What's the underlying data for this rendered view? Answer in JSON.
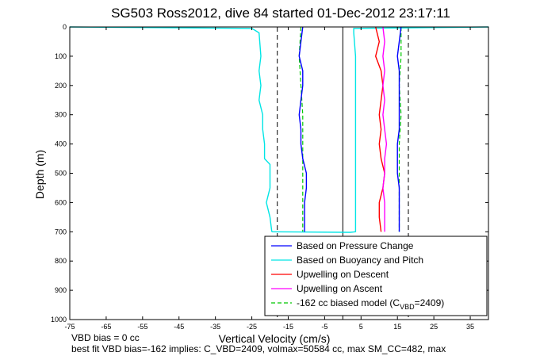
{
  "chart_data": {
    "type": "line",
    "title": "SG503 Ross2012, dive 84 started 01-Dec-2012 23:17:11",
    "xlabel": "Vertical Velocity (cm/s)",
    "ylabel": "Depth (m)",
    "xlim": [
      -75,
      40
    ],
    "ylim": [
      1000,
      0
    ],
    "y_reversed": true,
    "xticks": [
      -75,
      -65,
      -55,
      -45,
      -35,
      -25,
      -15,
      -5,
      5,
      15,
      25,
      35
    ],
    "yticks": [
      0,
      100,
      200,
      300,
      400,
      500,
      600,
      700,
      800,
      900,
      1000
    ],
    "legend_position": "bottom-right",
    "series": [
      {
        "name": "Based on Pressure Change",
        "color": "#0000ff",
        "style": "solid",
        "descent": [
          [
            -11,
            0
          ],
          [
            -11.5,
            50
          ],
          [
            -12,
            100
          ],
          [
            -11,
            150
          ],
          [
            -11,
            200
          ],
          [
            -11.5,
            250
          ],
          [
            -12,
            300
          ],
          [
            -11.5,
            350
          ],
          [
            -11.5,
            400
          ],
          [
            -11,
            450
          ],
          [
            -10,
            500
          ],
          [
            -10,
            550
          ],
          [
            -10.5,
            600
          ],
          [
            -10.5,
            650
          ],
          [
            -10.5,
            700
          ]
        ],
        "ascent": [
          [
            16,
            0
          ],
          [
            15.5,
            50
          ],
          [
            15,
            100
          ],
          [
            15.5,
            150
          ],
          [
            15.5,
            200
          ],
          [
            15.5,
            250
          ],
          [
            15.5,
            300
          ],
          [
            15.5,
            350
          ],
          [
            15,
            400
          ],
          [
            15,
            450
          ],
          [
            15,
            500
          ],
          [
            15.5,
            550
          ],
          [
            15.5,
            600
          ],
          [
            15.5,
            650
          ],
          [
            15.5,
            700
          ]
        ]
      },
      {
        "name": "Based on Buoyancy and Pitch",
        "color": "#00e5e5",
        "style": "solid",
        "descent": [
          [
            -75,
            0
          ],
          [
            -25,
            5
          ],
          [
            -23,
            20
          ],
          [
            -22.5,
            100
          ],
          [
            -23,
            150
          ],
          [
            -22.5,
            200
          ],
          [
            -23,
            250
          ],
          [
            -22,
            300
          ],
          [
            -22,
            350
          ],
          [
            -21.5,
            400
          ],
          [
            -21.5,
            450
          ],
          [
            -20,
            470
          ],
          [
            -20,
            550
          ],
          [
            -21,
            600
          ],
          [
            -20,
            650
          ],
          [
            -19.5,
            700
          ]
        ],
        "ascent": [
          [
            -19.5,
            700
          ],
          [
            2,
            702
          ],
          [
            3.5,
            700
          ],
          [
            3.5,
            650
          ],
          [
            3.5,
            500
          ],
          [
            3.5,
            300
          ],
          [
            3.5,
            100
          ],
          [
            3,
            20
          ],
          [
            3,
            5
          ],
          [
            40,
            0
          ]
        ]
      },
      {
        "name": "Upwelling on Descent",
        "color": "#ff0000",
        "style": "solid",
        "values": [
          [
            9,
            0
          ],
          [
            10,
            50
          ],
          [
            9,
            100
          ],
          [
            10.5,
            150
          ],
          [
            11,
            200
          ],
          [
            10.5,
            250
          ],
          [
            10,
            300
          ],
          [
            10.5,
            350
          ],
          [
            10,
            400
          ],
          [
            10.5,
            450
          ],
          [
            11.5,
            500
          ],
          [
            11,
            550
          ],
          [
            10,
            600
          ],
          [
            10,
            650
          ],
          [
            10.5,
            700
          ]
        ]
      },
      {
        "name": "Upwelling on Ascent",
        "color": "#ff00ff",
        "style": "solid",
        "values": [
          [
            11,
            0
          ],
          [
            11.5,
            50
          ],
          [
            11,
            100
          ],
          [
            11.5,
            150
          ],
          [
            11,
            200
          ],
          [
            11.5,
            250
          ],
          [
            11,
            300
          ],
          [
            11.5,
            350
          ],
          [
            12,
            400
          ],
          [
            11.5,
            450
          ],
          [
            11.5,
            500
          ],
          [
            11,
            550
          ],
          [
            11.5,
            600
          ],
          [
            11.5,
            650
          ],
          [
            11.5,
            700
          ]
        ]
      },
      {
        "name": "-162 cc biased model (C",
        "name_sub": "VBD",
        "name_tail": "=2409)",
        "color": "#00c800",
        "style": "dashed",
        "descent": [
          [
            -11.5,
            0
          ],
          [
            -12,
            100
          ],
          [
            -11.5,
            200
          ],
          [
            -11,
            300
          ],
          [
            -11,
            400
          ],
          [
            -11,
            500
          ],
          [
            -11,
            600
          ],
          [
            -11,
            700
          ]
        ],
        "ascent": [
          [
            16,
            0
          ],
          [
            16,
            100
          ],
          [
            15.5,
            200
          ],
          [
            16,
            300
          ],
          [
            15.5,
            400
          ],
          [
            15.5,
            500
          ],
          [
            15.5,
            600
          ],
          [
            15.5,
            700
          ]
        ]
      }
    ],
    "reference_lines": [
      {
        "x": 0,
        "color": "#000000",
        "style": "solid"
      },
      {
        "x": -18,
        "color": "#000000",
        "style": "dashed"
      },
      {
        "x": 18,
        "color": "#000000",
        "style": "dashed"
      }
    ],
    "notes": [
      "VBD bias = 0 cc",
      "best fit VBD bias=-162 implies: C_VBD=2409, volmax=50584 cc, max SM_CC=482, max"
    ]
  }
}
